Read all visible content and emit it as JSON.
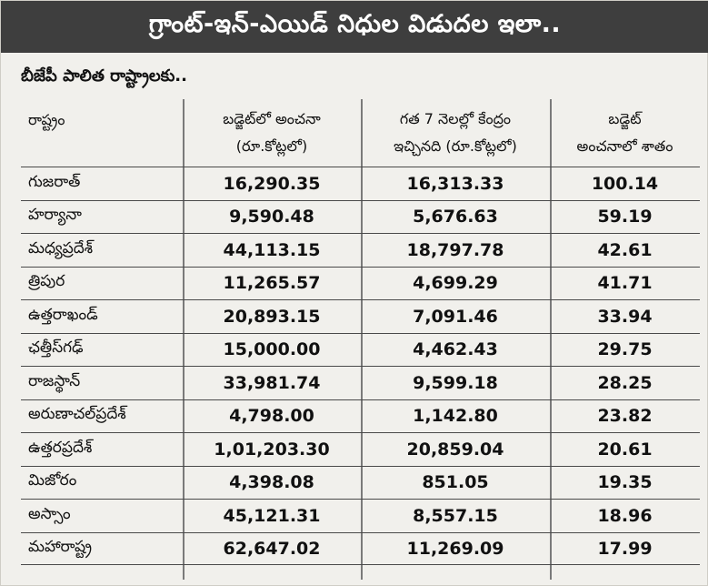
{
  "title": "గ్రాంట్-ఇన్-ఎయిడ్ నిధుల విడుదల ఇలా..",
  "subtitle": "బీజేపీ పాలిత రాష్ట్రాలకు..",
  "headers": {
    "state": "రాష్ట్రం",
    "budget_line1": "బడ్జెట్‌లో అంచనా",
    "budget_line2": "(రూ.కోట్లలో)",
    "released_line1": "గత 7 నెలల్లో కేంద్రం",
    "released_line2": "ఇచ్చినది (రూ.కోట్లలో)",
    "percent_line1": "బడ్జెట్",
    "percent_line2": "అంచనాలో శాతం"
  },
  "rows": [
    {
      "state": "గుజరాత్",
      "budget": "16,290.35",
      "released": "16,313.33",
      "percent": "100.14"
    },
    {
      "state": "హర్యానా",
      "budget": "9,590.48",
      "released": "5,676.63",
      "percent": "59.19"
    },
    {
      "state": "మధ్యప్రదేశ్",
      "budget": "44,113.15",
      "released": "18,797.78",
      "percent": "42.61"
    },
    {
      "state": "త్రిపుర",
      "budget": "11,265.57",
      "released": "4,699.29",
      "percent": "41.71"
    },
    {
      "state": "ఉత్తరాఖండ్",
      "budget": "20,893.15",
      "released": "7,091.46",
      "percent": "33.94"
    },
    {
      "state": "ఛత్తీస్‌గఢ్",
      "budget": "15,000.00",
      "released": "4,462.43",
      "percent": "29.75"
    },
    {
      "state": "రాజస్థాన్",
      "budget": "33,981.74",
      "released": "9,599.18",
      "percent": "28.25"
    },
    {
      "state": "అరుణాచల్‌ప్రదేశ్",
      "budget": "4,798.00",
      "released": "1,142.80",
      "percent": "23.82"
    },
    {
      "state": "ఉత్తరప్రదేశ్",
      "budget": "1,01,203.30",
      "released": "20,859.04",
      "percent": "20.61"
    },
    {
      "state": "మిజోరం",
      "budget": "4,398.08",
      "released": "851.05",
      "percent": "19.35"
    },
    {
      "state": "అస్సాం",
      "budget": "45,121.31",
      "released": "8,557.15",
      "percent": "18.96"
    },
    {
      "state": "మహారాష్ట్ర",
      "budget": "62,647.02",
      "released": "11,269.09",
      "percent": "17.99"
    }
  ]
}
